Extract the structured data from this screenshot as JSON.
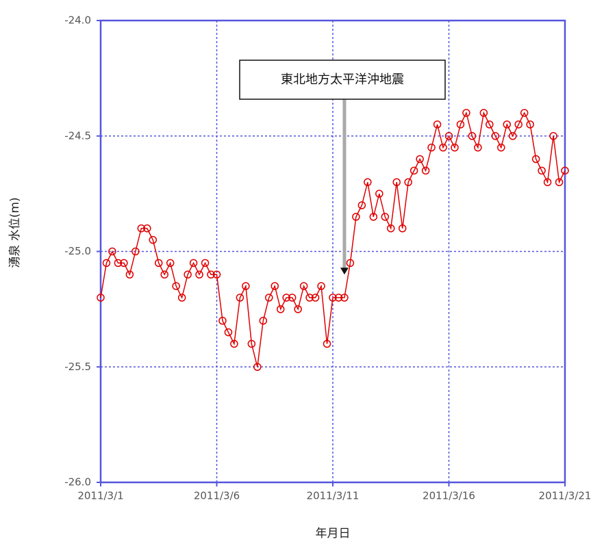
{
  "chart_data": {
    "type": "line",
    "ylabel": "湧泉 水位(m)",
    "xlabel": "年月日",
    "annotation": {
      "text": "東北地方太平洋沖地震",
      "x": 10.5,
      "y": -25.1
    },
    "xlim": [
      0,
      20
    ],
    "xticks": [
      {
        "value": 0,
        "label": "2011/3/1"
      },
      {
        "value": 5,
        "label": "2011/3/6"
      },
      {
        "value": 10,
        "label": "2011/3/11"
      },
      {
        "value": 15,
        "label": "2011/3/16"
      },
      {
        "value": 20,
        "label": "2011/3/21"
      }
    ],
    "ylim": [
      -26,
      -24
    ],
    "yticks": [
      {
        "value": -26,
        "label": "-26.0"
      },
      -25.5,
      {
        "value": -25,
        "label": "-25.0"
      },
      -24.5,
      {
        "value": -24,
        "label": "-24.0"
      }
    ],
    "grid": true,
    "axis_color": "#5555dd",
    "series": [
      {
        "color": "#e00000",
        "x": [
          0,
          0.25,
          0.5,
          0.75,
          1,
          1.25,
          1.5,
          1.75,
          2,
          2.25,
          2.5,
          2.75,
          3,
          3.25,
          3.5,
          3.75,
          4,
          4.25,
          4.5,
          4.75,
          5,
          5.25,
          5.5,
          5.75,
          6,
          6.25,
          6.5,
          6.75,
          7,
          7.25,
          7.5,
          7.75,
          8,
          8.25,
          8.5,
          8.75,
          9,
          9.25,
          9.5,
          9.75,
          10,
          10.25,
          10.5,
          10.75,
          11,
          11.25,
          11.5,
          11.75,
          12,
          12.25,
          12.5,
          12.75,
          13,
          13.25,
          13.5,
          13.75,
          14,
          14.25,
          14.5,
          14.75,
          15,
          15.25,
          15.5,
          15.75,
          16,
          16.25,
          16.5,
          16.75,
          17,
          17.25,
          17.5,
          17.75,
          18,
          18.25,
          18.5,
          18.75,
          19,
          19.25,
          19.5,
          19.75,
          20
        ],
        "values": [
          -25.2,
          -25.05,
          -25.0,
          -25.05,
          -25.05,
          -25.1,
          -25.0,
          -24.9,
          -24.9,
          -24.95,
          -25.05,
          -25.1,
          -25.05,
          -25.15,
          -25.2,
          -25.1,
          -25.05,
          -25.1,
          -25.05,
          -25.1,
          -25.1,
          -25.3,
          -25.35,
          -25.4,
          -25.2,
          -25.15,
          -25.4,
          -25.5,
          -25.3,
          -25.2,
          -25.15,
          -25.25,
          -25.2,
          -25.2,
          -25.25,
          -25.15,
          -25.2,
          -25.2,
          -25.15,
          -25.4,
          -25.2,
          -25.2,
          -25.2,
          -25.05,
          -24.85,
          -24.8,
          -24.7,
          -24.85,
          -24.75,
          -24.85,
          -24.9,
          -24.7,
          -24.9,
          -24.7,
          -24.65,
          -24.6,
          -24.65,
          -24.55,
          -24.45,
          -24.55,
          -24.5,
          -24.55,
          -24.45,
          -24.4,
          -24.5,
          -24.55,
          -24.4,
          -24.45,
          -24.5,
          -24.55,
          -24.45,
          -24.5,
          -24.45,
          -24.4,
          -24.45,
          -24.6,
          -24.65,
          -24.7,
          -24.5,
          -24.7,
          -24.65
        ]
      }
    ]
  }
}
